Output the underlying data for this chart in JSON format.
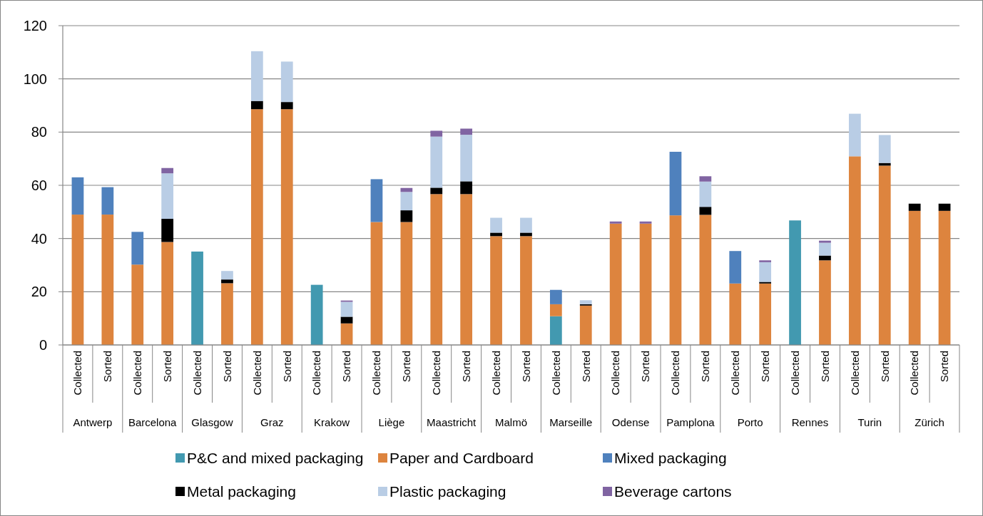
{
  "chart_data": {
    "type": "bar",
    "stacked": true,
    "grid": "y",
    "legend": "bottom",
    "categories": [
      "Collected",
      "Sorted",
      "Collected",
      "Sorted",
      "Collected",
      "Sorted",
      "Collected",
      "Sorted",
      "Collected",
      "Sorted",
      "Collected",
      "Sorted",
      "Collected",
      "Sorted",
      "Collected",
      "Sorted",
      "Collected",
      "Sorted",
      "Collected",
      "Sorted",
      "Collected",
      "Sorted",
      "Collected",
      "Sorted",
      "Collected",
      "Sorted",
      "Collected",
      "Sorted",
      "Collected",
      "Sorted"
    ],
    "annotations": [
      "Antwerp",
      "Barcelona",
      "Glasgow",
      "Graz",
      "Krakow",
      "Liège",
      "Maastricht",
      "Malmö",
      "Marseille",
      "Odense",
      "Pamplona",
      "Porto",
      "Rennes",
      "Turin",
      "Zürich"
    ],
    "ylim": [
      0,
      120
    ],
    "yticks": [
      0,
      20,
      40,
      60,
      80,
      100,
      120
    ],
    "series": [
      {
        "name": "P&C and mixed packaging",
        "color": "#4299b0",
        "values": [
          null,
          null,
          null,
          null,
          35.1,
          null,
          null,
          null,
          22.6,
          null,
          null,
          null,
          null,
          null,
          null,
          null,
          10.8,
          null,
          null,
          null,
          null,
          null,
          null,
          null,
          46.8,
          null,
          null,
          null,
          null,
          null
        ]
      },
      {
        "name": "Paper and Cardboard",
        "color": "#dd843e",
        "values": [
          49,
          49,
          30.2,
          38.7,
          null,
          23.2,
          88.6,
          88.6,
          null,
          8.1,
          46.2,
          46.2,
          56.7,
          56.7,
          40.9,
          40.9,
          4.5,
          14.8,
          45.6,
          45.6,
          48.7,
          48.9,
          23.1,
          23.1,
          null,
          31.8,
          70.9,
          67.4,
          50.4,
          50.4
        ]
      },
      {
        "name": "Mixed packaging",
        "color": "#4f81bd",
        "values": [
          14,
          10.3,
          12.3,
          null,
          null,
          null,
          null,
          null,
          null,
          null,
          16.1,
          null,
          null,
          null,
          null,
          null,
          5.4,
          null,
          null,
          null,
          23.9,
          null,
          12.2,
          null,
          null,
          null,
          null,
          null,
          null,
          null
        ]
      },
      {
        "name": "Metal packaging",
        "color": "#000000",
        "values": [
          null,
          null,
          null,
          8.7,
          null,
          1.4,
          3.1,
          2.7,
          null,
          2.5,
          null,
          4.4,
          2.4,
          4.8,
          1.3,
          1.3,
          null,
          0.5,
          null,
          null,
          null,
          3.0,
          null,
          0.6,
          null,
          1.8,
          null,
          1.0,
          2.7,
          2.7
        ]
      },
      {
        "name": "Plastic packaging",
        "color": "#b9cde5",
        "values": [
          null,
          null,
          null,
          17.1,
          null,
          3.2,
          18.7,
          15.2,
          null,
          5.6,
          null,
          6.9,
          19.2,
          17.5,
          5.6,
          5.6,
          null,
          1.5,
          null,
          null,
          null,
          9.5,
          null,
          7.4,
          null,
          4.8,
          16.0,
          10.5,
          null,
          null
        ]
      },
      {
        "name": "Beverage cartons",
        "color": "#8064a2",
        "values": [
          null,
          null,
          null,
          2.0,
          null,
          null,
          null,
          null,
          null,
          0.5,
          null,
          1.5,
          2.2,
          2.3,
          null,
          null,
          null,
          null,
          0.8,
          0.8,
          null,
          2.0,
          null,
          0.7,
          null,
          0.8,
          null,
          null,
          null,
          null
        ]
      }
    ]
  }
}
